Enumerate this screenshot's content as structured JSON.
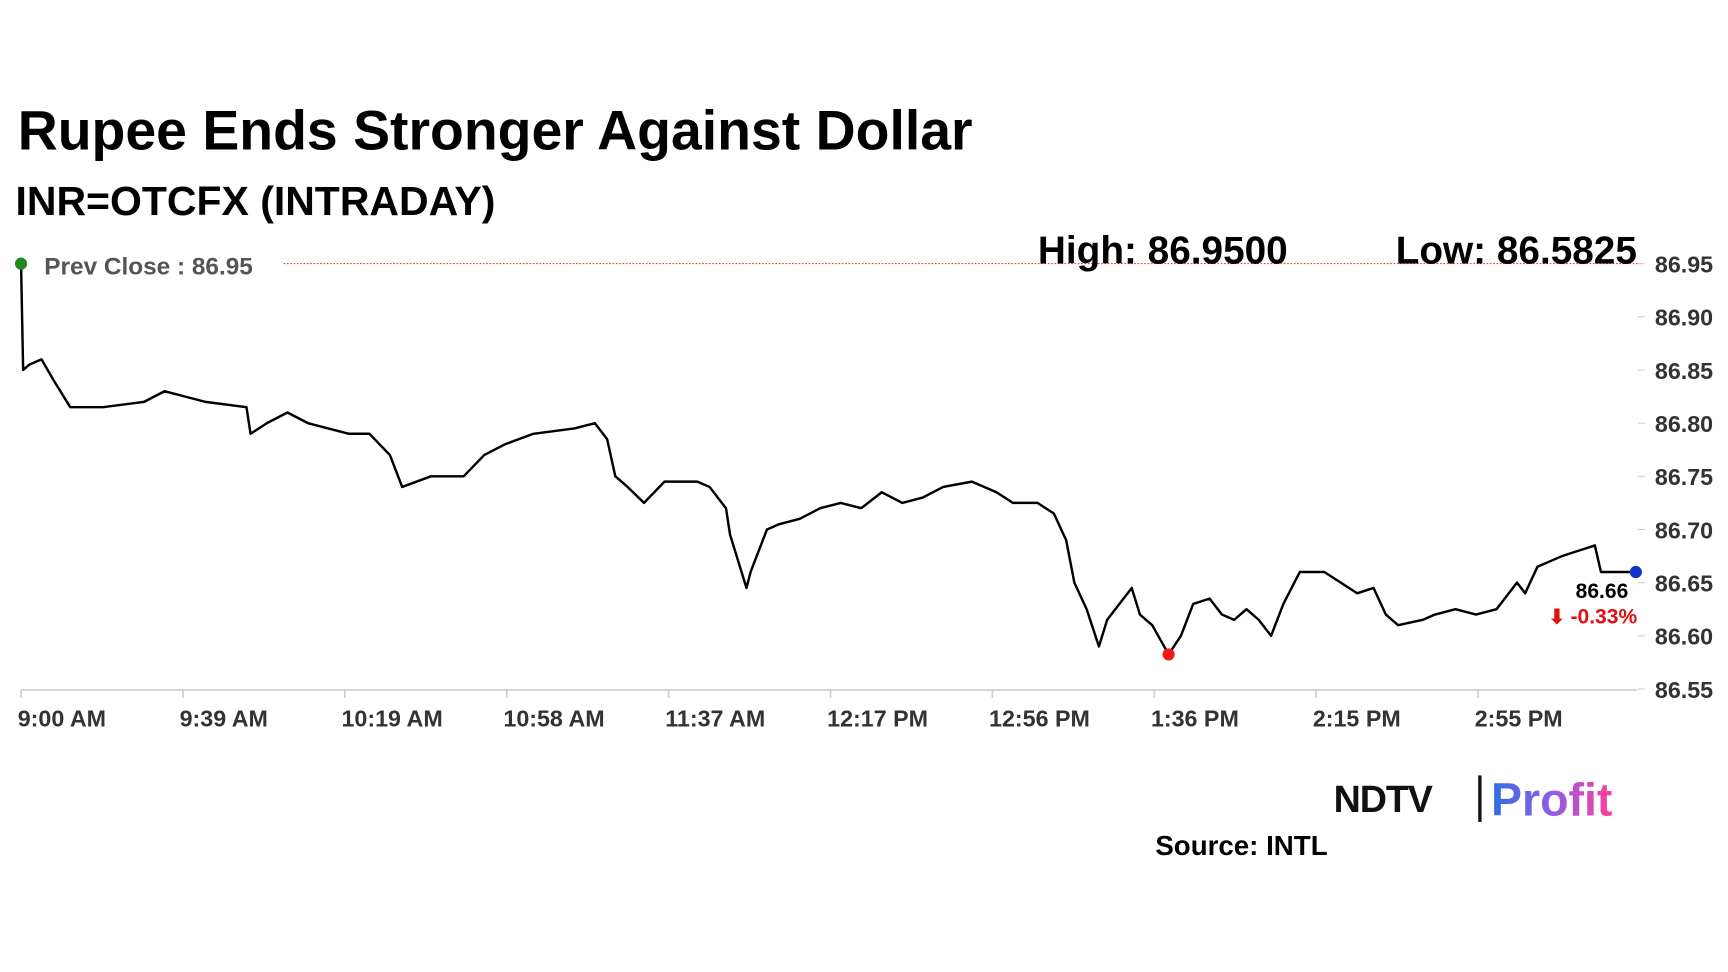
{
  "chart_data": {
    "type": "line",
    "title": "Rupee Ends Stronger Against Dollar",
    "subtitle": "INR=OTCFX (INTRADAY)",
    "annotations": {
      "prev_close": "Prev Close : 86.95",
      "high": "High: 86.9500",
      "low": "Low: 86.5825",
      "last": "86.66",
      "change": "-0.33%"
    },
    "source": "Source: INTL",
    "logo": {
      "left": "NDTV",
      "right": "Profit"
    },
    "x": [
      0,
      0.5,
      2,
      5,
      8,
      12,
      20,
      30,
      35,
      45,
      55,
      56,
      60,
      65,
      70,
      80,
      85,
      90,
      93,
      100,
      108,
      113,
      118,
      125,
      135,
      140,
      143,
      145,
      148,
      152,
      157,
      165,
      168,
      170,
      172,
      173,
      175,
      177,
      178,
      180,
      182,
      185,
      190,
      195,
      200,
      205,
      210,
      215,
      220,
      225,
      232,
      238,
      242,
      248,
      252,
      255,
      257,
      260,
      263,
      265,
      268,
      271,
      273,
      276,
      280,
      283,
      286,
      290,
      293,
      296,
      299,
      302,
      305,
      308,
      312,
      318,
      322,
      326,
      330,
      333,
      336,
      342,
      345,
      350,
      355,
      360,
      365,
      367,
      370,
      376,
      380,
      384,
      385.5,
      394
    ],
    "series": [
      {
        "name": "INR=OTCFX",
        "color": "#000000",
        "values": [
          86.95,
          86.85,
          86.855,
          86.86,
          86.84,
          86.815,
          86.815,
          86.82,
          86.83,
          86.82,
          86.815,
          86.79,
          86.8,
          86.81,
          86.8,
          86.79,
          86.79,
          86.77,
          86.74,
          86.75,
          86.75,
          86.77,
          86.78,
          86.79,
          86.795,
          86.8,
          86.785,
          86.75,
          86.74,
          86.725,
          86.745,
          86.745,
          86.74,
          86.73,
          86.72,
          86.695,
          86.67,
          86.645,
          86.66,
          86.68,
          86.7,
          86.705,
          86.71,
          86.72,
          86.725,
          86.72,
          86.735,
          86.725,
          86.73,
          86.74,
          86.745,
          86.735,
          86.725,
          86.725,
          86.715,
          86.69,
          86.65,
          86.625,
          86.59,
          86.615,
          86.63,
          86.645,
          86.62,
          86.61,
          86.5825,
          86.6,
          86.63,
          86.635,
          86.62,
          86.615,
          86.625,
          86.615,
          86.6,
          86.63,
          86.66,
          86.66,
          86.65,
          86.64,
          86.645,
          86.62,
          86.61,
          86.615,
          86.62,
          86.625,
          86.62,
          86.625,
          86.65,
          86.64,
          86.665,
          86.675,
          86.68,
          86.685,
          86.66,
          86.66
        ]
      }
    ],
    "xlim": [
      0,
      394
    ],
    "xticks": [
      {
        "value": 0,
        "label": "9:00 AM"
      },
      {
        "value": 39.5,
        "label": "9:39 AM"
      },
      {
        "value": 79,
        "label": "10:19 AM"
      },
      {
        "value": 118.5,
        "label": "10:58 AM"
      },
      {
        "value": 158,
        "label": "11:37 AM"
      },
      {
        "value": 197.5,
        "label": "12:17 PM"
      },
      {
        "value": 237,
        "label": "12:56 PM"
      },
      {
        "value": 276.5,
        "label": "1:36 PM"
      },
      {
        "value": 316,
        "label": "2:15 PM"
      },
      {
        "value": 355.5,
        "label": "2:55 PM"
      }
    ],
    "ylim": [
      86.55,
      86.95
    ],
    "yticks": [
      86.95,
      {
        "value": 86.9,
        "label": "86.90"
      },
      86.85,
      {
        "value": 86.8,
        "label": "86.80"
      },
      86.75,
      {
        "value": 86.7,
        "label": "86.70"
      },
      86.65,
      {
        "value": 86.6,
        "label": "86.60"
      },
      86.55
    ],
    "grid": false
  }
}
